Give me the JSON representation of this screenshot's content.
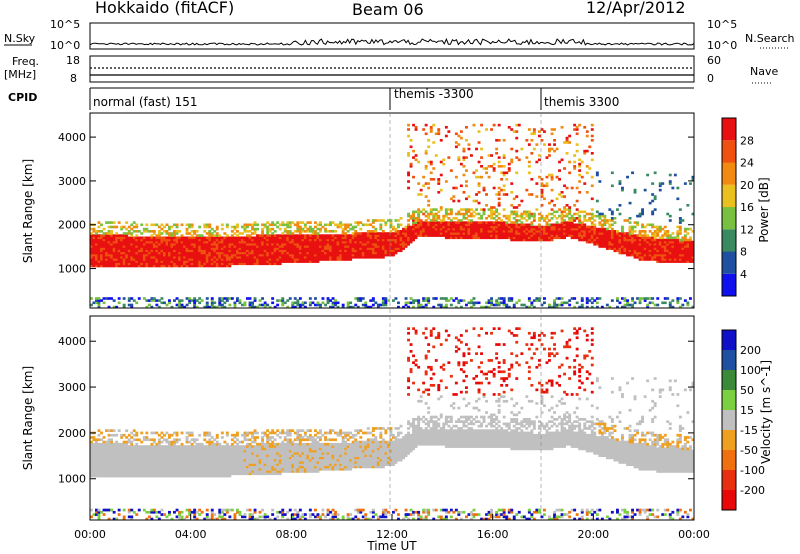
{
  "header": {
    "radar": "Hokkaido (fitACF)",
    "beam": "Beam 06",
    "date": "12/Apr/2012"
  },
  "noise_panel": {
    "left_label": "N.Sky",
    "right_label": "N.Search",
    "ticks_left": [
      "10^5",
      "10^0"
    ],
    "ticks_right": [
      "10^5",
      "10^0"
    ]
  },
  "freq_panel": {
    "left_label_1": "Freq.",
    "left_label_2": "[MHz]",
    "ticks_left": [
      "18",
      "8"
    ],
    "right_label": "Nave",
    "ticks_right": [
      "60",
      "0"
    ]
  },
  "cpid_panel": {
    "label": "CPID",
    "segments": [
      {
        "name": "normal (fast) 151",
        "start_hour": 0
      },
      {
        "name": "themis -3300",
        "start_hour": 12
      },
      {
        "name": "themis 3300",
        "start_hour": 18
      }
    ]
  },
  "colors": {
    "power_scale": [
      "#1010ee",
      "#1f4f9f",
      "#3a8a60",
      "#78c040",
      "#e9c020",
      "#f08a10",
      "#f05010",
      "#e81010"
    ],
    "velocity_scale": [
      "#1010c8",
      "#2050a0",
      "#3a8a3a",
      "#7ad040",
      "#c0c0c0",
      "#f0a020",
      "#f07010",
      "#e83010",
      "#e80808"
    ]
  },
  "chart_data": [
    {
      "type": "heatmap",
      "name": "power",
      "xlabel": "",
      "ylabel": "Slant Range [km]",
      "xlim_hours": [
        0,
        24
      ],
      "ylim": [
        100,
        4550
      ],
      "yticks": [
        1000,
        2000,
        3000,
        4000
      ],
      "colorbar": {
        "label": "Power [dB]",
        "ticks": [
          4,
          8,
          12,
          16,
          20,
          24,
          28
        ],
        "range": [
          0,
          32
        ]
      },
      "main_echo_band_km": [
        {
          "hour": 0,
          "low": 1000,
          "high": 1750
        },
        {
          "hour": 4,
          "low": 1000,
          "high": 1700
        },
        {
          "hour": 8,
          "low": 1100,
          "high": 1750
        },
        {
          "hour": 12,
          "low": 1250,
          "high": 1800
        },
        {
          "hour": 13,
          "low": 1700,
          "high": 2050
        },
        {
          "hour": 16,
          "low": 1650,
          "high": 2050
        },
        {
          "hour": 18,
          "low": 1600,
          "high": 1950
        },
        {
          "hour": 19,
          "low": 1700,
          "high": 2050
        },
        {
          "hour": 22,
          "low": 1150,
          "high": 1700
        },
        {
          "hour": 24,
          "low": 1100,
          "high": 1600
        }
      ]
    },
    {
      "type": "heatmap",
      "name": "velocity",
      "xlabel": "Time UT",
      "ylabel": "Slant Range [km]",
      "xlim_hours": [
        0,
        24
      ],
      "xticks": [
        "00:00",
        "04:00",
        "08:00",
        "12:00",
        "16:00",
        "20:00",
        "00:00"
      ],
      "ylim": [
        100,
        4550
      ],
      "yticks": [
        1000,
        2000,
        3000,
        4000
      ],
      "colorbar": {
        "label": "Velocity [m s^-1]",
        "ticks": [
          200,
          100,
          50,
          15,
          -15,
          -50,
          -100,
          -200
        ]
      }
    }
  ]
}
